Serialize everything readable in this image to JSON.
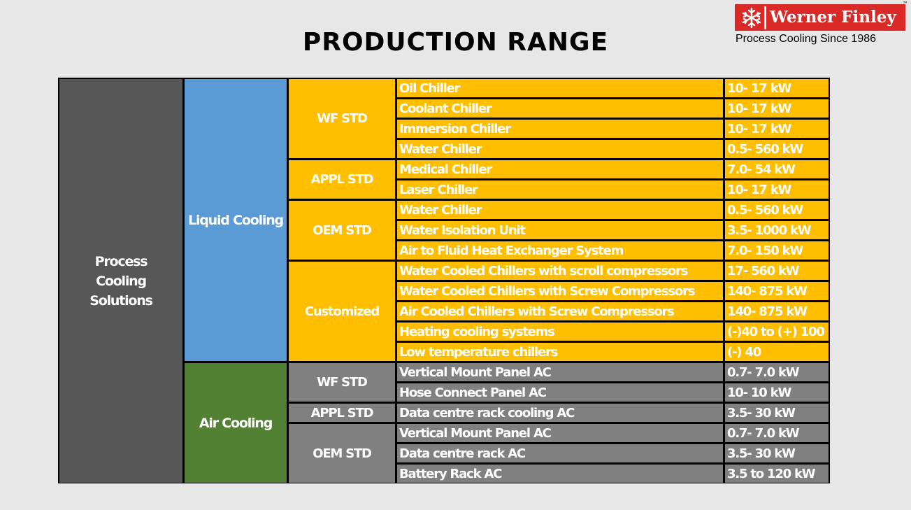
{
  "title": "PRODUCTION RANGE",
  "logo": {
    "name": "Werner Finley",
    "tagline": "Process Cooling Since 1986",
    "trademark": "™",
    "icon": "snowflake-icon"
  },
  "colors": {
    "process_cooling": "#575757",
    "liquid_cooling": "#5a9ad5",
    "air_cooling": "#538133",
    "liquid_rows": "#ffbf00",
    "air_rows": "#808080",
    "logo_red": "#d92a27"
  },
  "table": {
    "root": "Process Cooling Solutions",
    "groups": [
      {
        "label": "Liquid Cooling",
        "categories": [
          {
            "label": "WF STD",
            "rows": [
              {
                "item": "Oil Chiller",
                "range": "10- 17 kW"
              },
              {
                "item": "Coolant Chiller",
                "range": "10- 17 kW"
              },
              {
                "item": "Immersion Chiller",
                "range": "10- 17 kW"
              },
              {
                "item": "Water Chiller",
                "range": "0.5- 560 kW"
              }
            ]
          },
          {
            "label": "APPL STD",
            "rows": [
              {
                "item": "Medical Chiller",
                "range": "7.0- 54 kW"
              },
              {
                "item": "Laser Chiller",
                "range": "10- 17 kW"
              }
            ]
          },
          {
            "label": "OEM STD",
            "rows": [
              {
                "item": "Water Chiller",
                "range": "0.5- 560 kW"
              },
              {
                "item": "Water Isolation Unit",
                "range": "3.5- 1000 kW"
              },
              {
                "item": "Air to Fluid Heat Exchanger System",
                "range": "7.0- 150 kW"
              }
            ]
          },
          {
            "label": "Customized",
            "rows": [
              {
                "item": "Water Cooled Chillers with scroll compressors",
                "range": "17- 560 kW"
              },
              {
                "item": "Water Cooled Chillers with Screw Compressors",
                "range": "140- 875 kW"
              },
              {
                "item": "Air Cooled Chillers with Screw Compressors",
                "range": "140- 875 kW"
              },
              {
                "item": "Heating cooling systems",
                "range": "(-)40 to (+) 100"
              },
              {
                "item": "Low temperature chillers",
                "range": "(-) 40"
              }
            ]
          }
        ]
      },
      {
        "label": "Air Cooling",
        "categories": [
          {
            "label": "WF STD",
            "rows": [
              {
                "item": "Vertical Mount Panel AC",
                "range": "0.7- 7.0 kW"
              },
              {
                "item": "Hose Connect Panel AC",
                "range": "10- 10 kW"
              }
            ]
          },
          {
            "label": "APPL STD",
            "rows": [
              {
                "item": "Data centre rack cooling AC",
                "range": "3.5- 30 kW"
              }
            ]
          },
          {
            "label": "OEM STD",
            "rows": [
              {
                "item": "Vertical Mount Panel AC",
                "range": "0.7- 7.0 kW"
              },
              {
                "item": "Data centre rack AC",
                "range": "3.5- 30 kW"
              },
              {
                "item": "Battery Rack AC",
                "range": "3.5 to 120 kW"
              }
            ]
          }
        ]
      }
    ]
  }
}
